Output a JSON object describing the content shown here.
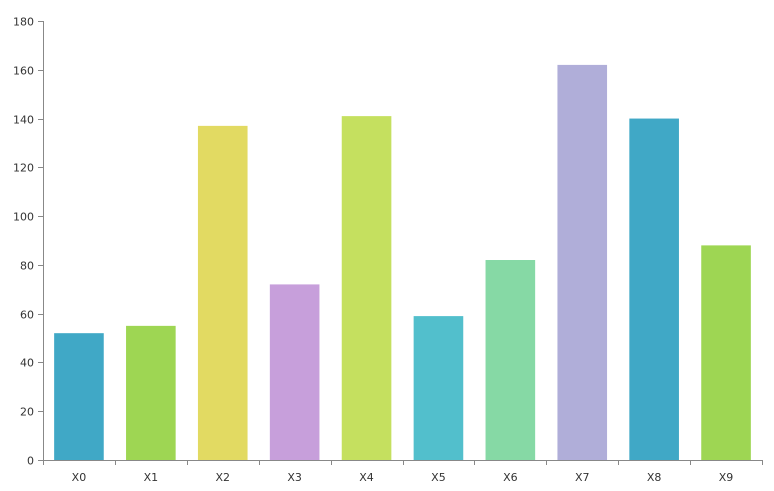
{
  "chart_data": {
    "type": "bar",
    "title": "",
    "xlabel": "",
    "ylabel": "",
    "categories": [
      "X0",
      "X1",
      "X2",
      "X3",
      "X4",
      "X5",
      "X6",
      "X7",
      "X8",
      "X9"
    ],
    "values": [
      52,
      55,
      137,
      72,
      141,
      59,
      82,
      162,
      140,
      88
    ],
    "colors": [
      "#40a8c6",
      "#9ed653",
      "#e2da62",
      "#c79fdb",
      "#c5e05f",
      "#52bfcc",
      "#86d9a5",
      "#b0aed9",
      "#40a8c6",
      "#9ed653"
    ],
    "ylim": [
      0,
      180
    ],
    "yticks": [
      0,
      20,
      40,
      60,
      80,
      100,
      120,
      140,
      160,
      180
    ],
    "grid": false,
    "legend": "none"
  }
}
